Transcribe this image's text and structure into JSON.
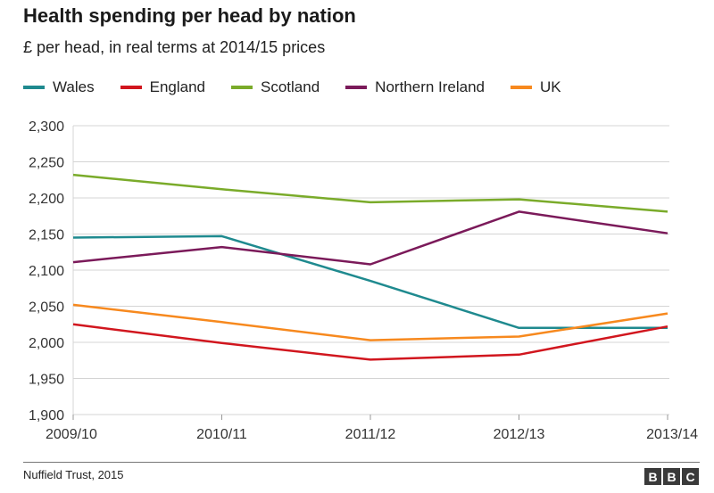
{
  "page": {
    "title": "Health spending per head by nation",
    "subtitle": "£ per head, in real terms at 2014/15 prices",
    "source": "Nuffield Trust, 2015",
    "logo_letters": [
      "B",
      "B",
      "C"
    ]
  },
  "chart_data": {
    "type": "line",
    "title": "Health spending per head by nation",
    "subtitle": "£ per head, in real terms at 2014/15 prices",
    "xlabel": "",
    "ylabel": "",
    "categories": [
      "2009/10",
      "2010/11",
      "2011/12",
      "2012/13",
      "2013/14"
    ],
    "ylim": [
      1900,
      2300
    ],
    "yticks": [
      1900,
      1950,
      2000,
      2050,
      2100,
      2150,
      2200,
      2250,
      2300
    ],
    "ytick_labels": [
      "1,900",
      "1,950",
      "2,000",
      "2,050",
      "2,100",
      "2,150",
      "2,200",
      "2,250",
      "2,300"
    ],
    "grid": "horizontal",
    "legend_position": "top",
    "series": [
      {
        "name": "Wales",
        "color": "#1f8a8f",
        "values": [
          2145,
          2147,
          2085,
          2020,
          2020
        ]
      },
      {
        "name": "England",
        "color": "#d1161e",
        "values": [
          2025,
          1999,
          1976,
          1983,
          2022
        ]
      },
      {
        "name": "Scotland",
        "color": "#7aab2a",
        "values": [
          2232,
          2212,
          2194,
          2198,
          2181
        ]
      },
      {
        "name": "Northern Ireland",
        "color": "#7b1a5a",
        "values": [
          2111,
          2132,
          2108,
          2181,
          2151
        ]
      },
      {
        "name": "UK",
        "color": "#f7891e",
        "values": [
          2052,
          2028,
          2003,
          2008,
          2040
        ]
      }
    ]
  }
}
